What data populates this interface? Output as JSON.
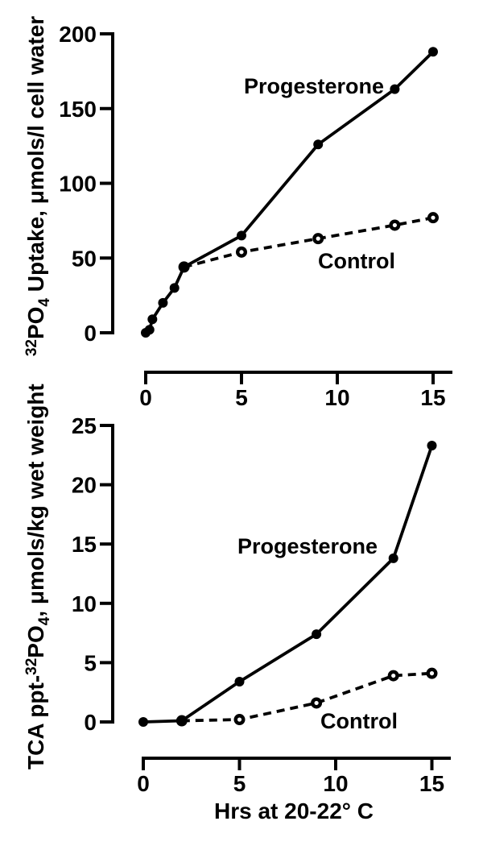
{
  "figure": {
    "background_color": "#ffffff",
    "ink_color": "#000000"
  },
  "chart_data": [
    {
      "type": "line",
      "title": "",
      "ylabel": "³²PO₄ Uptake, μmols/l cell water",
      "ylabel_parts": {
        "pre": "",
        "sup": "32",
        "mid": "PO",
        "sub": "4",
        "rest": " Uptake, μmols/l cell water"
      },
      "xlabel": "",
      "xlim": [
        0,
        15
      ],
      "ylim": [
        0,
        200
      ],
      "xticks": [
        "0",
        "5",
        "10",
        "15"
      ],
      "xtick_values": [
        0,
        5,
        10,
        15
      ],
      "yticks": [
        "0",
        "50",
        "100",
        "150",
        "200"
      ],
      "ytick_values": [
        0,
        50,
        100,
        150,
        200
      ],
      "grid": false,
      "legend_position": "inline-annotations",
      "series": [
        {
          "name": "Progesterone",
          "marker": "filled-circle",
          "line": "solid",
          "x": [
            0,
            0.2,
            0.35,
            0.9,
            1.5,
            2,
            5,
            9,
            13,
            15
          ],
          "y": [
            0,
            2,
            9,
            20,
            30,
            44,
            65,
            126,
            163,
            188
          ]
        },
        {
          "name": "Control",
          "marker": "open-circle",
          "line": "dashed",
          "x": [
            2,
            5,
            9,
            13,
            15
          ],
          "y": [
            44,
            54,
            63,
            72,
            77
          ]
        }
      ]
    },
    {
      "type": "line",
      "title": "",
      "ylabel": "TCA ppt-³²PO₄, μmols/kg wet weight",
      "ylabel_parts": {
        "pre": "TCA ppt-",
        "sup": "32",
        "mid": "PO",
        "sub": "4",
        "rest": ", μmols/kg wet weight"
      },
      "xlabel": "Hrs at 20-22° C",
      "xlim": [
        0,
        15
      ],
      "ylim": [
        0,
        25
      ],
      "xticks": [
        "0",
        "5",
        "10",
        "15"
      ],
      "xtick_values": [
        0,
        5,
        10,
        15
      ],
      "yticks": [
        "0",
        "5",
        "10",
        "15",
        "20",
        "25"
      ],
      "ytick_values": [
        0,
        5,
        10,
        15,
        20,
        25
      ],
      "grid": false,
      "legend_position": "inline-annotations",
      "series": [
        {
          "name": "Progesterone",
          "marker": "filled-circle",
          "line": "solid",
          "x": [
            0,
            2,
            5,
            9,
            13,
            15
          ],
          "y": [
            0,
            0.1,
            3.4,
            7.4,
            13.8,
            23.3
          ]
        },
        {
          "name": "Control",
          "marker": "open-circle",
          "line": "dashed",
          "x": [
            2,
            5,
            9,
            13,
            15
          ],
          "y": [
            0.1,
            0.2,
            1.6,
            3.9,
            4.1
          ]
        }
      ]
    }
  ]
}
